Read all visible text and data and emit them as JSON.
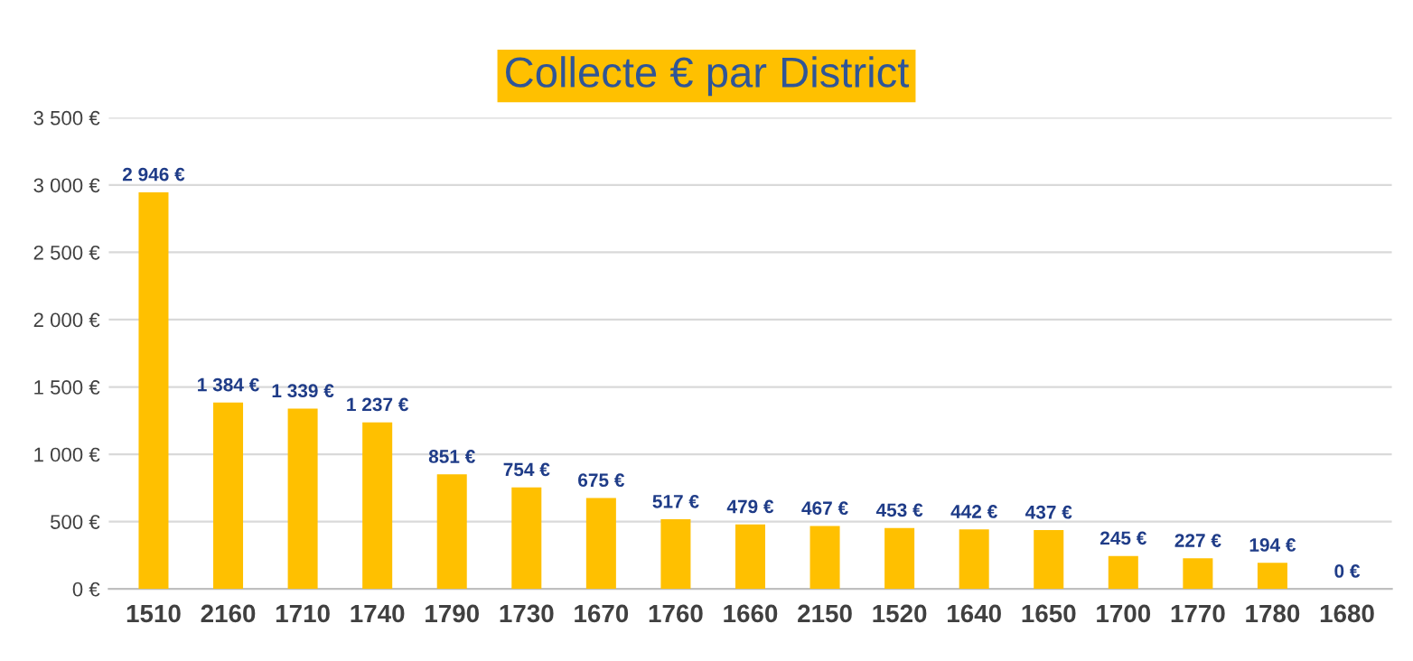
{
  "chart_data": {
    "type": "bar",
    "title": "Collecte € par District",
    "categories": [
      "1510",
      "2160",
      "1710",
      "1740",
      "1790",
      "1730",
      "1670",
      "1760",
      "1660",
      "2150",
      "1520",
      "1640",
      "1650",
      "1700",
      "1770",
      "1780",
      "1680"
    ],
    "values": [
      2946,
      1384,
      1339,
      1237,
      851,
      754,
      675,
      517,
      479,
      467,
      453,
      442,
      437,
      245,
      227,
      194,
      0
    ],
    "value_labels": [
      "2 946 €",
      "1 384 €",
      "1 339 €",
      "1 237 €",
      "851 €",
      "754 €",
      "675 €",
      "517 €",
      "479 €",
      "467 €",
      "453 €",
      "442 €",
      "437 €",
      "245 €",
      "227 €",
      "194 €",
      "0 €"
    ],
    "color": "#ffc000",
    "ylim": [
      0,
      3500
    ],
    "yticks": [
      {
        "value": 0,
        "label": "0 €"
      },
      {
        "value": 500,
        "label": "500 €"
      },
      {
        "value": 1000,
        "label": "1 000 €"
      },
      {
        "value": 1500,
        "label": "1 500 €"
      },
      {
        "value": 2000,
        "label": "2 000 €"
      },
      {
        "value": 2500,
        "label": "2 500 €"
      },
      {
        "value": 3000,
        "label": "3 000 €"
      },
      {
        "value": 3500,
        "label": "3 500 €"
      }
    ],
    "grid": "y",
    "legend": false
  }
}
